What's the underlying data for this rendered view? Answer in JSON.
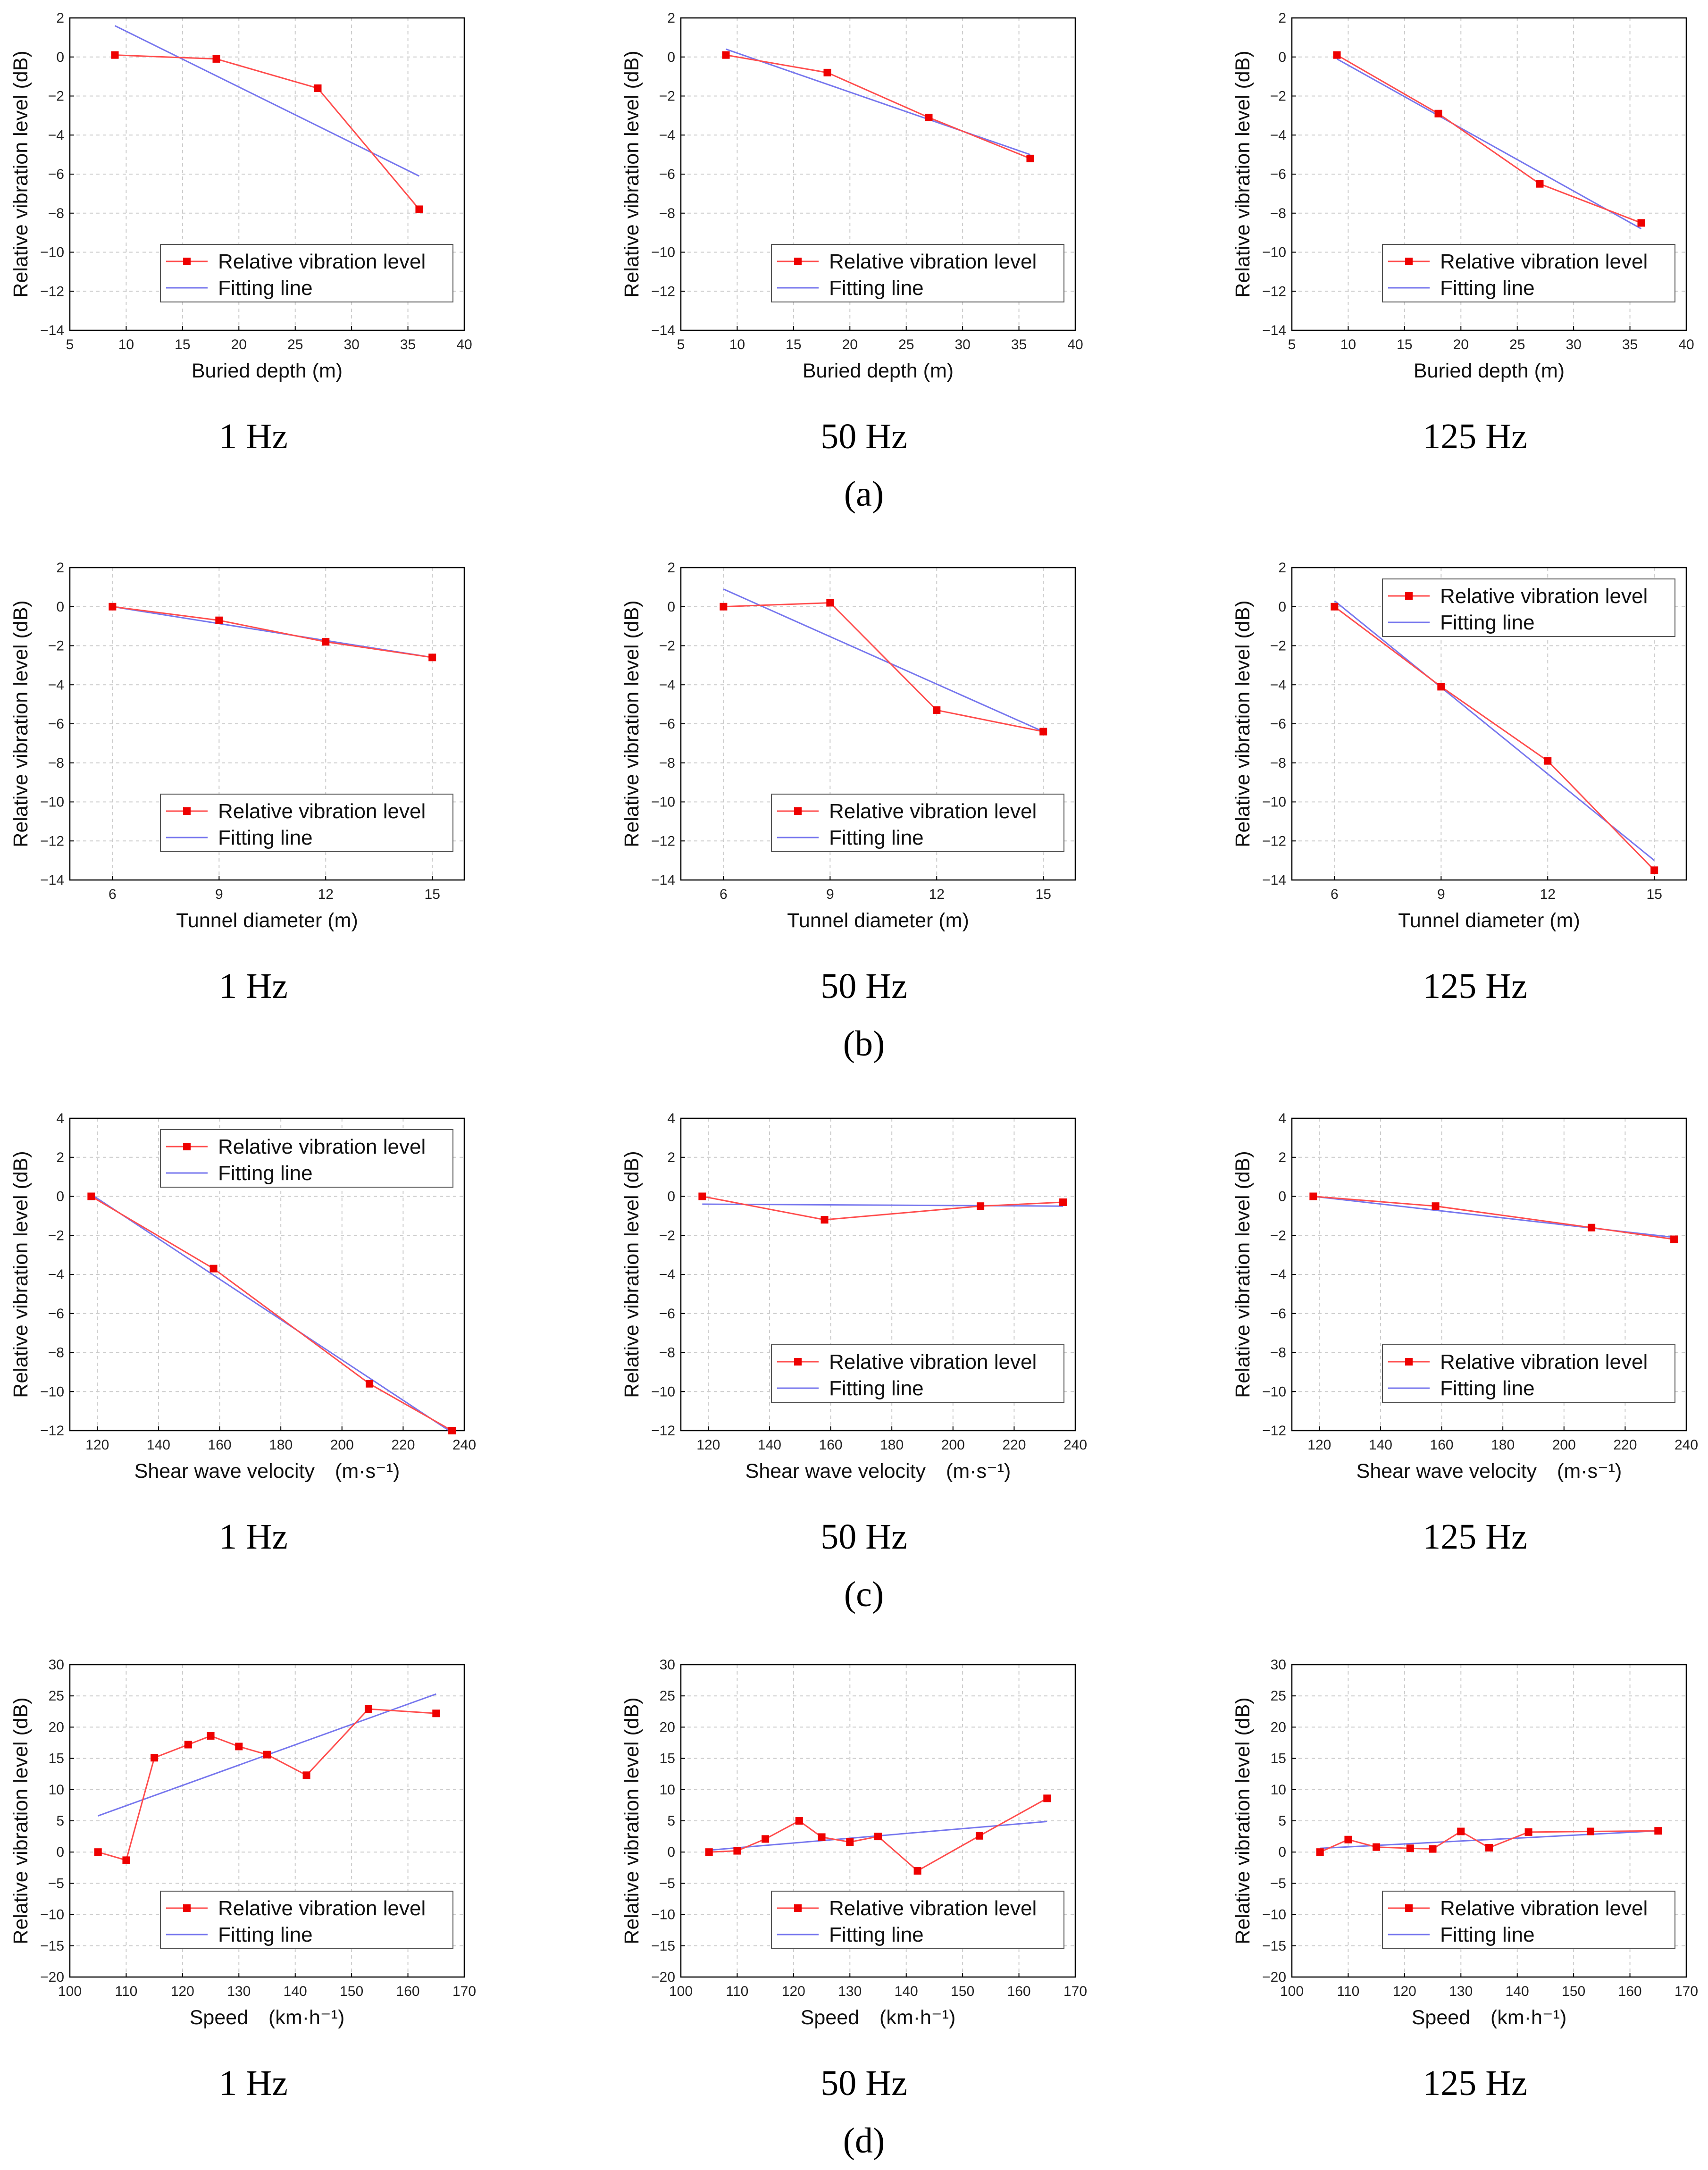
{
  "colors": {
    "measured": "#ff4d4d",
    "marker": "#ee0000",
    "fit": "#7777ee",
    "grid": "#cccccc",
    "axis": "#000000"
  },
  "legend": {
    "measured": "Relative vibration level",
    "fit": "Fitting line"
  },
  "rows": [
    {
      "id": "a",
      "label": "(a)",
      "panels": [
        {
          "freq": "1 Hz",
          "legend_position": "bottom-right",
          "chart_data": {
            "type": "line",
            "xlabel": "Buried depth (m)",
            "ylabel": "Relative vibration level (dB)",
            "xlim": [
              5,
              40
            ],
            "ylim": [
              -14,
              2
            ],
            "xticks": [
              5,
              10,
              15,
              20,
              25,
              30,
              35,
              40
            ],
            "yticks": [
              2,
              0,
              -2,
              -4,
              -6,
              -8,
              -10,
              -12,
              -14
            ],
            "series": [
              {
                "name": "Relative vibration level",
                "x": [
                  9,
                  18,
                  27,
                  36
                ],
                "y": [
                  0.1,
                  -0.1,
                  -1.6,
                  -7.8
                ]
              },
              {
                "name": "Fitting line",
                "x": [
                  9,
                  36
                ],
                "y": [
                  1.6,
                  -6.1
                ]
              }
            ]
          }
        },
        {
          "freq": "50 Hz",
          "legend_position": "bottom-right",
          "chart_data": {
            "type": "line",
            "xlabel": "Buried depth (m)",
            "ylabel": "Relative vibration level (dB)",
            "xlim": [
              5,
              40
            ],
            "ylim": [
              -14,
              2
            ],
            "xticks": [
              5,
              10,
              15,
              20,
              25,
              30,
              35,
              40
            ],
            "yticks": [
              2,
              0,
              -2,
              -4,
              -6,
              -8,
              -10,
              -12,
              -14
            ],
            "series": [
              {
                "name": "Relative vibration level",
                "x": [
                  9,
                  18,
                  27,
                  36
                ],
                "y": [
                  0.1,
                  -0.8,
                  -3.1,
                  -5.2
                ]
              },
              {
                "name": "Fitting line",
                "x": [
                  9,
                  36
                ],
                "y": [
                  0.4,
                  -5.0
                ]
              }
            ]
          }
        },
        {
          "freq": "125 Hz",
          "legend_position": "bottom-right",
          "chart_data": {
            "type": "line",
            "xlabel": "Buried depth (m)",
            "ylabel": "Relative vibration level (dB)",
            "xlim": [
              5,
              40
            ],
            "ylim": [
              -14,
              2
            ],
            "xticks": [
              5,
              10,
              15,
              20,
              25,
              30,
              35,
              40
            ],
            "yticks": [
              2,
              0,
              -2,
              -4,
              -6,
              -8,
              -10,
              -12,
              -14
            ],
            "series": [
              {
                "name": "Relative vibration level",
                "x": [
                  9,
                  18,
                  27,
                  36
                ],
                "y": [
                  0.1,
                  -2.9,
                  -6.5,
                  -8.5
                ]
              },
              {
                "name": "Fitting line",
                "x": [
                  9,
                  36
                ],
                "y": [
                  -0.1,
                  -8.8
                ]
              }
            ]
          }
        }
      ]
    },
    {
      "id": "b",
      "label": "(b)",
      "panels": [
        {
          "freq": "1 Hz",
          "legend_position": "bottom-right",
          "chart_data": {
            "type": "line",
            "xlabel": "Tunnel diameter (m)",
            "ylabel": "Relative vibration level (dB)",
            "xlim": [
              4.8,
              15.9
            ],
            "ylim": [
              -14,
              2
            ],
            "xticks": [
              6,
              9,
              12,
              15
            ],
            "yticks": [
              2,
              0,
              -2,
              -4,
              -6,
              -8,
              -10,
              -12,
              -14
            ],
            "series": [
              {
                "name": "Relative vibration level",
                "x": [
                  6,
                  9,
                  12,
                  15
                ],
                "y": [
                  0.0,
                  -0.7,
                  -1.8,
                  -2.6
                ]
              },
              {
                "name": "Fitting line",
                "x": [
                  6,
                  15
                ],
                "y": [
                  0.0,
                  -2.6
                ]
              }
            ]
          }
        },
        {
          "freq": "50 Hz",
          "legend_position": "bottom-right",
          "chart_data": {
            "type": "line",
            "xlabel": "Tunnel diameter (m)",
            "ylabel": "Relative vibration level (dB)",
            "xlim": [
              4.8,
              15.9
            ],
            "ylim": [
              -14,
              2
            ],
            "xticks": [
              6,
              9,
              12,
              15
            ],
            "yticks": [
              2,
              0,
              -2,
              -4,
              -6,
              -8,
              -10,
              -12,
              -14
            ],
            "series": [
              {
                "name": "Relative vibration level",
                "x": [
                  6,
                  9,
                  12,
                  15
                ],
                "y": [
                  0.0,
                  0.2,
                  -5.3,
                  -6.4
                ]
              },
              {
                "name": "Fitting line",
                "x": [
                  6,
                  15
                ],
                "y": [
                  0.9,
                  -6.4
                ]
              }
            ]
          }
        },
        {
          "freq": "125 Hz",
          "legend_position": "top-right",
          "chart_data": {
            "type": "line",
            "xlabel": "Tunnel diameter (m)",
            "ylabel": "Relative vibration level (dB)",
            "xlim": [
              4.8,
              15.9
            ],
            "ylim": [
              -14,
              2
            ],
            "xticks": [
              6,
              9,
              12,
              15
            ],
            "yticks": [
              2,
              0,
              -2,
              -4,
              -6,
              -8,
              -10,
              -12,
              -14
            ],
            "series": [
              {
                "name": "Relative vibration level",
                "x": [
                  6,
                  9,
                  12,
                  15
                ],
                "y": [
                  0.0,
                  -4.1,
                  -7.9,
                  -13.5
                ]
              },
              {
                "name": "Fitting line",
                "x": [
                  6,
                  15
                ],
                "y": [
                  0.3,
                  -13.0
                ]
              }
            ]
          }
        }
      ]
    },
    {
      "id": "c",
      "label": "(c)",
      "panels": [
        {
          "freq": "1 Hz",
          "legend_position": "top-right",
          "chart_data": {
            "type": "line",
            "xlabel": "Shear wave velocity　(m·s⁻¹)",
            "ylabel": "Relative vibration level (dB)",
            "xlim": [
              111,
              240
            ],
            "ylim": [
              -12,
              4
            ],
            "xticks": [
              120,
              140,
              160,
              180,
              200,
              220,
              240
            ],
            "yticks": [
              4,
              2,
              0,
              -2,
              -4,
              -6,
              -8,
              -10,
              -12
            ],
            "series": [
              {
                "name": "Relative vibration level",
                "x": [
                  118,
                  158,
                  209,
                  236
                ],
                "y": [
                  0.0,
                  -3.7,
                  -9.6,
                  -12.0
                ]
              },
              {
                "name": "Fitting line",
                "x": [
                  118,
                  236
                ],
                "y": [
                  0.1,
                  -12.1
                ]
              }
            ]
          }
        },
        {
          "freq": "50 Hz",
          "legend_position": "bottom-right",
          "chart_data": {
            "type": "line",
            "xlabel": "Shear wave velocity　(m·s⁻¹)",
            "ylabel": "Relative vibration level (dB)",
            "xlim": [
              111,
              240
            ],
            "ylim": [
              -12,
              4
            ],
            "xticks": [
              120,
              140,
              160,
              180,
              200,
              220,
              240
            ],
            "yticks": [
              4,
              2,
              0,
              -2,
              -4,
              -6,
              -8,
              -10,
              -12
            ],
            "series": [
              {
                "name": "Relative vibration level",
                "x": [
                  118,
                  158,
                  209,
                  236
                ],
                "y": [
                  0.0,
                  -1.2,
                  -0.5,
                  -0.3
                ]
              },
              {
                "name": "Fitting line",
                "x": [
                  118,
                  236
                ],
                "y": [
                  -0.4,
                  -0.5
                ]
              }
            ]
          }
        },
        {
          "freq": "125 Hz",
          "legend_position": "bottom-right",
          "chart_data": {
            "type": "line",
            "xlabel": "Shear wave velocity　(m·s⁻¹)",
            "ylabel": "Relative vibration level (dB)",
            "xlim": [
              111,
              240
            ],
            "ylim": [
              -12,
              4
            ],
            "xticks": [
              120,
              140,
              160,
              180,
              200,
              220,
              240
            ],
            "yticks": [
              4,
              2,
              0,
              -2,
              -4,
              -6,
              -8,
              -10,
              -12
            ],
            "series": [
              {
                "name": "Relative vibration level",
                "x": [
                  118,
                  158,
                  209,
                  236
                ],
                "y": [
                  0.0,
                  -0.5,
                  -1.6,
                  -2.2
                ]
              },
              {
                "name": "Fitting line",
                "x": [
                  118,
                  236
                ],
                "y": [
                  0.0,
                  -2.1
                ]
              }
            ]
          }
        }
      ]
    },
    {
      "id": "d",
      "label": "(d)",
      "panels": [
        {
          "freq": "1 Hz",
          "legend_position": "bottom-right",
          "chart_data": {
            "type": "line",
            "xlabel": "Speed　(km·h⁻¹)",
            "ylabel": "Relative vibration level (dB)",
            "xlim": [
              100,
              170
            ],
            "ylim": [
              -20,
              30
            ],
            "xticks": [
              100,
              110,
              120,
              130,
              140,
              150,
              160,
              170
            ],
            "yticks": [
              30,
              25,
              20,
              15,
              10,
              5,
              0,
              -5,
              -10,
              -15,
              -20
            ],
            "series": [
              {
                "name": "Relative vibration level",
                "x": [
                  105,
                  110,
                  115,
                  121,
                  125,
                  130,
                  135,
                  142,
                  153,
                  165
                ],
                "y": [
                  0.0,
                  -1.3,
                  15.1,
                  17.2,
                  18.6,
                  16.9,
                  15.6,
                  12.3,
                  22.9,
                  22.2
                ]
              },
              {
                "name": "Fitting line",
                "x": [
                  105,
                  165
                ],
                "y": [
                  5.8,
                  25.3
                ]
              }
            ]
          }
        },
        {
          "freq": "50 Hz",
          "legend_position": "bottom-right",
          "chart_data": {
            "type": "line",
            "xlabel": "Speed　(km·h⁻¹)",
            "ylabel": "Relative vibration level (dB)",
            "xlim": [
              100,
              170
            ],
            "ylim": [
              -20,
              30
            ],
            "xticks": [
              100,
              110,
              120,
              130,
              140,
              150,
              160,
              170
            ],
            "yticks": [
              30,
              25,
              20,
              15,
              10,
              5,
              0,
              -5,
              -10,
              -15,
              -20
            ],
            "series": [
              {
                "name": "Relative vibration level",
                "x": [
                  105,
                  110,
                  115,
                  121,
                  125,
                  130,
                  135,
                  142,
                  153,
                  165
                ],
                "y": [
                  0.0,
                  0.2,
                  2.1,
                  5.0,
                  2.4,
                  1.6,
                  2.5,
                  -3.0,
                  2.6,
                  8.6
                ]
              },
              {
                "name": "Fitting line",
                "x": [
                  105,
                  165
                ],
                "y": [
                  0.3,
                  4.9
                ]
              }
            ]
          }
        },
        {
          "freq": "125 Hz",
          "legend_position": "bottom-right",
          "chart_data": {
            "type": "line",
            "xlabel": "Speed　(km·h⁻¹)",
            "ylabel": "Relative vibration level (dB)",
            "xlim": [
              100,
              170
            ],
            "ylim": [
              -20,
              30
            ],
            "xticks": [
              100,
              110,
              120,
              130,
              140,
              150,
              160,
              170
            ],
            "yticks": [
              30,
              25,
              20,
              15,
              10,
              5,
              0,
              -5,
              -10,
              -15,
              -20
            ],
            "series": [
              {
                "name": "Relative vibration level",
                "x": [
                  105,
                  110,
                  115,
                  121,
                  125,
                  130,
                  135,
                  142,
                  153,
                  165
                ],
                "y": [
                  0.0,
                  2.0,
                  0.8,
                  0.6,
                  0.5,
                  3.3,
                  0.7,
                  3.2,
                  3.3,
                  3.4
                ]
              },
              {
                "name": "Fitting line",
                "x": [
                  105,
                  165
                ],
                "y": [
                  0.6,
                  3.4
                ]
              }
            ]
          }
        }
      ]
    }
  ]
}
